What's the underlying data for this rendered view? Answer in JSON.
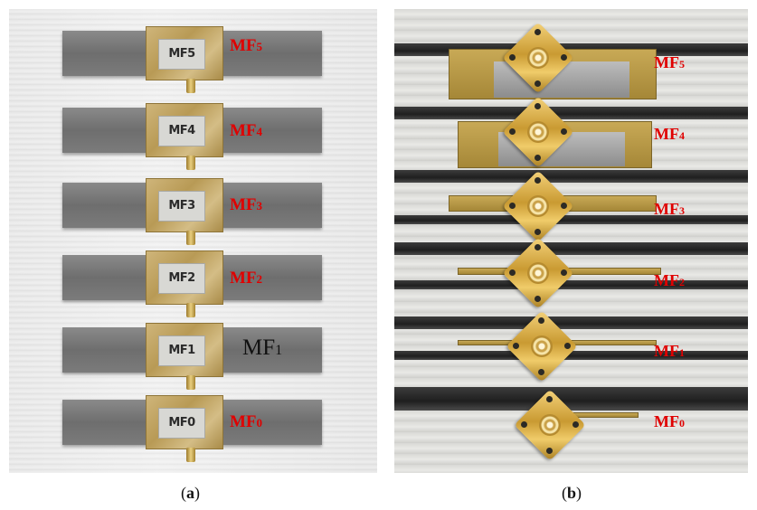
{
  "panel_a": {
    "tags": [
      "MF5",
      "MF4",
      "MF3",
      "MF2",
      "MF1",
      "MF0"
    ],
    "labels": [
      {
        "base": "MF",
        "sub": "5"
      },
      {
        "base": "MF",
        "sub": "4"
      },
      {
        "base": "MF",
        "sub": "3"
      },
      {
        "base": "MF",
        "sub": "2"
      },
      {
        "base": "MF",
        "sub": "1"
      },
      {
        "base": "MF",
        "sub": "0"
      }
    ]
  },
  "panel_b": {
    "labels": [
      {
        "base": "MF",
        "sub": "5"
      },
      {
        "base": "MF",
        "sub": "4"
      },
      {
        "base": "MF",
        "sub": "3"
      },
      {
        "base": "MF",
        "sub": "2"
      },
      {
        "base": "MF",
        "sub": "1"
      },
      {
        "base": "MF",
        "sub": "0"
      }
    ]
  },
  "captions": {
    "a": {
      "open": "(",
      "letter": "a",
      "close": ")"
    },
    "b": {
      "open": "(",
      "letter": "b",
      "close": ")"
    }
  },
  "colors": {
    "label_red": "#e00000",
    "label_dark": "#111111"
  }
}
